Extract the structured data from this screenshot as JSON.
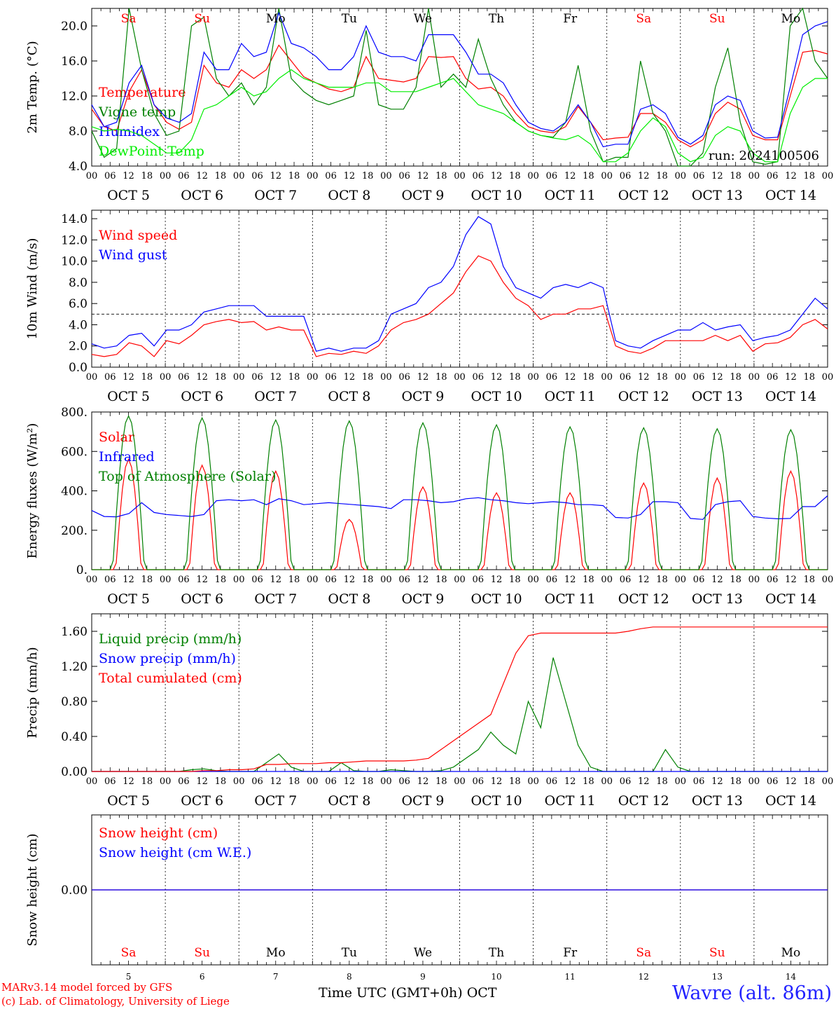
{
  "chart_data": [
    {
      "type": "line",
      "ylabel": "2m Temp. (°C)",
      "ylim": [
        4,
        22
      ],
      "yticks": [
        "4.0",
        "8.0",
        "12.0",
        "16.0",
        "20.0"
      ],
      "annotation": "run: 2024100506",
      "series": [
        {
          "name": "Temperature",
          "color": "#ff0000",
          "values": [
            10.5,
            8.5,
            8.0,
            12.5,
            15.0,
            11.0,
            9.0,
            8.2,
            9.0,
            15.5,
            13.5,
            13.0,
            15.0,
            14.0,
            15.0,
            17.8,
            16.0,
            14.2,
            13.5,
            12.8,
            12.5,
            13.0,
            16.5,
            14.0,
            13.8,
            13.6,
            14.0,
            16.5,
            16.4,
            16.5,
            14.0,
            12.8,
            13.0,
            12.0,
            10.0,
            8.5,
            8.0,
            7.8,
            8.5,
            10.8,
            9.0,
            7.0,
            7.2,
            7.3,
            10.0,
            10.0,
            9.0,
            7.0,
            6.2,
            7.0,
            10.0,
            11.3,
            10.5,
            7.5,
            7.0,
            7.0,
            12.0,
            17.0,
            17.2,
            16.8
          ]
        },
        {
          "name": "Vigne temp",
          "color": "#008000",
          "values": [
            8.0,
            5.0,
            6.0,
            22.0,
            15.0,
            10.0,
            7.5,
            8.0,
            20.0,
            21.0,
            14.0,
            12.0,
            13.5,
            11.0,
            13.0,
            22.0,
            14.0,
            12.5,
            11.5,
            11.0,
            11.5,
            12.0,
            19.5,
            11.0,
            10.5,
            10.5,
            13.0,
            22.0,
            13.0,
            14.5,
            13.0,
            18.5,
            14.0,
            11.0,
            9.0,
            8.0,
            7.5,
            7.3,
            9.0,
            15.5,
            8.0,
            4.5,
            5.0,
            5.0,
            16.0,
            10.0,
            8.0,
            4.0,
            4.0,
            5.5,
            13.0,
            17.5,
            9.0,
            4.5,
            4.2,
            4.5,
            20.0,
            22.0,
            16.0,
            14.0
          ]
        },
        {
          "name": "Humidex",
          "color": "#0000ff",
          "values": [
            11.0,
            8.5,
            9.0,
            13.5,
            15.5,
            11.0,
            9.5,
            9.0,
            10.0,
            17.0,
            15.0,
            15.0,
            18.0,
            16.5,
            17.0,
            21.5,
            18.0,
            17.5,
            16.5,
            15.0,
            15.0,
            16.5,
            20.0,
            17.0,
            16.5,
            16.5,
            16.0,
            19.0,
            19.0,
            19.0,
            17.0,
            14.5,
            14.5,
            13.5,
            11.0,
            9.0,
            8.3,
            8.0,
            9.0,
            11.0,
            9.0,
            6.2,
            6.5,
            6.5,
            10.5,
            11.0,
            10.0,
            7.3,
            6.5,
            7.5,
            11.0,
            12.0,
            11.5,
            8.0,
            7.2,
            7.3,
            13.0,
            19.0,
            20.0,
            20.5
          ]
        },
        {
          "name": "DewPoint Temp",
          "color": "#00ee00",
          "values": [
            8.5,
            8.0,
            8.2,
            8.0,
            7.5,
            6.5,
            5.5,
            5.5,
            7.0,
            10.5,
            11.0,
            12.0,
            13.0,
            12.0,
            12.5,
            14.0,
            15.0,
            14.0,
            13.5,
            13.0,
            13.0,
            13.0,
            13.5,
            13.5,
            12.5,
            12.5,
            12.5,
            13.0,
            13.5,
            14.0,
            12.5,
            11.0,
            10.5,
            10.0,
            9.0,
            8.0,
            7.5,
            7.2,
            7.0,
            7.5,
            6.5,
            4.5,
            4.5,
            5.5,
            8.0,
            9.5,
            8.5,
            5.5,
            4.5,
            5.0,
            7.5,
            8.5,
            8.0,
            5.5,
            4.5,
            4.5,
            10.0,
            13.0,
            14.0,
            14.0
          ]
        }
      ]
    },
    {
      "type": "line",
      "ylabel": "10m Wind (m/s)",
      "ylim": [
        0,
        14.8
      ],
      "yticks": [
        "0.0",
        "2.0",
        "4.0",
        "6.0",
        "8.0",
        "10.0",
        "12.0",
        "14.0"
      ],
      "reference_line": 5,
      "series": [
        {
          "name": "Wind speed",
          "color": "#ff0000",
          "values": [
            1.2,
            1.0,
            1.2,
            2.3,
            2.0,
            1.0,
            2.5,
            2.2,
            3.0,
            4.0,
            4.3,
            4.5,
            4.2,
            4.3,
            3.5,
            3.8,
            3.5,
            3.5,
            1.0,
            1.3,
            1.2,
            1.5,
            1.3,
            2.0,
            3.5,
            4.2,
            4.5,
            5.0,
            6.0,
            7.0,
            9.0,
            10.5,
            10.0,
            8.0,
            6.5,
            5.8,
            4.5,
            5.0,
            5.0,
            5.5,
            5.5,
            5.8,
            2.0,
            1.5,
            1.3,
            1.8,
            2.5,
            2.5,
            2.5,
            2.5,
            3.0,
            2.5,
            3.0,
            1.5,
            2.2,
            2.3,
            2.8,
            4.0,
            4.5,
            3.6
          ]
        },
        {
          "name": "Wind gust",
          "color": "#0000ff",
          "values": [
            2.2,
            1.8,
            2.0,
            3.0,
            3.2,
            2.0,
            3.5,
            3.5,
            4.0,
            5.2,
            5.5,
            5.8,
            5.8,
            5.8,
            4.8,
            4.8,
            4.8,
            4.8,
            1.5,
            1.8,
            1.5,
            1.8,
            1.8,
            2.5,
            5.0,
            5.5,
            6.0,
            7.5,
            8.0,
            9.5,
            12.5,
            14.2,
            13.5,
            9.5,
            7.5,
            7.0,
            6.5,
            7.5,
            7.8,
            7.5,
            8.0,
            7.5,
            2.5,
            2.0,
            1.8,
            2.5,
            3.0,
            3.5,
            3.5,
            4.2,
            3.5,
            3.8,
            4.0,
            2.5,
            2.8,
            3.0,
            3.5,
            5.0,
            6.5,
            5.5
          ]
        }
      ]
    },
    {
      "type": "line",
      "ylabel": "Energy fluxes (W/m²)",
      "ylim": [
        0,
        800
      ],
      "yticks": [
        "0.",
        "200.",
        "400.",
        "600.",
        "800."
      ],
      "series": [
        {
          "name": "Solar",
          "color": "#ff0000",
          "values": [
            0,
            0,
            0,
            0,
            0,
            0,
            0,
            0,
            0,
            0,
            0,
            0,
            0,
            0,
            0,
            0,
            0,
            0,
            0,
            0,
            0,
            0,
            0,
            0,
            0,
            0,
            0,
            0,
            0,
            0,
            0,
            0,
            0,
            0,
            0,
            0,
            0,
            0,
            0,
            0,
            0,
            0,
            0,
            0,
            0,
            0,
            0,
            0,
            0,
            0,
            0,
            0,
            0,
            0,
            0,
            0,
            0,
            0,
            0,
            0
          ]
        },
        {
          "name": "Infrared",
          "color": "#0000ff",
          "values": [
            300,
            270,
            268,
            285,
            340,
            290,
            280,
            275,
            270,
            280,
            350,
            355,
            350,
            355,
            330,
            360,
            350,
            330,
            335,
            340,
            335,
            330,
            325,
            320,
            310,
            355,
            355,
            350,
            340,
            345,
            360,
            365,
            355,
            350,
            340,
            335,
            340,
            345,
            340,
            330,
            330,
            325,
            265,
            262,
            280,
            345,
            345,
            340,
            260,
            255,
            330,
            345,
            350,
            270,
            262,
            258,
            260,
            320,
            320,
            375
          ]
        },
        {
          "name": "Top of Atmosphere (Solar)",
          "color": "#008000",
          "values": [
            0,
            0,
            0,
            0,
            0,
            0,
            0,
            0,
            0,
            0,
            0,
            0,
            0,
            0,
            0,
            0,
            0,
            0,
            0,
            0,
            0,
            0,
            0,
            0,
            0,
            0,
            0,
            0,
            0,
            0,
            0,
            0,
            0,
            0,
            0,
            0,
            0,
            0,
            0,
            0,
            0,
            0,
            0,
            0,
            0,
            0,
            0,
            0,
            0,
            0,
            0,
            0,
            0,
            0,
            0,
            0,
            0,
            0,
            0,
            0
          ]
        }
      ],
      "solar_daily": {
        "peak_hour": 12,
        "half_width_hours": 5.2,
        "toa_peaks": [
          780,
          770,
          760,
          755,
          745,
          735,
          725,
          720,
          715,
          710
        ],
        "solar_peaks": [
          560,
          530,
          500,
          255,
          420,
          390,
          390,
          440,
          465,
          500
        ]
      }
    },
    {
      "type": "line",
      "ylabel": "Precip (mm/h)",
      "ylim": [
        0,
        1.8
      ],
      "yticks": [
        "0.00",
        "0.40",
        "0.80",
        "1.20",
        "1.60"
      ],
      "series": [
        {
          "name": "Liquid precip (mm/h)",
          "color": "#008000",
          "values": [
            0,
            0,
            0,
            0,
            0,
            0,
            0,
            0,
            0.02,
            0.03,
            0.01,
            0,
            0,
            0,
            0.1,
            0.2,
            0.05,
            0,
            0,
            0,
            0.1,
            0.01,
            0,
            0,
            0.02,
            0.01,
            0,
            0,
            0.01,
            0.05,
            0.15,
            0.25,
            0.45,
            0.3,
            0.2,
            0.8,
            0.5,
            1.3,
            0.8,
            0.3,
            0.05,
            0,
            0,
            0,
            0,
            0,
            0.25,
            0.05,
            0,
            0,
            0,
            0,
            0,
            0,
            0,
            0,
            0,
            0,
            0,
            0
          ]
        },
        {
          "name": "Snow precip (mm/h)",
          "color": "#0000ff",
          "values": [
            0,
            0,
            0,
            0,
            0,
            0,
            0,
            0,
            0,
            0,
            0,
            0,
            0,
            0,
            0,
            0,
            0,
            0,
            0,
            0,
            0,
            0,
            0,
            0,
            0,
            0,
            0,
            0,
            0,
            0,
            0,
            0,
            0,
            0,
            0,
            0,
            0,
            0,
            0,
            0,
            0,
            0,
            0,
            0,
            0,
            0,
            0,
            0,
            0,
            0,
            0,
            0,
            0,
            0,
            0,
            0,
            0,
            0,
            0,
            0
          ]
        },
        {
          "name": "Total cumulated (cm)",
          "color": "#ff0000",
          "values": [
            0,
            0,
            0,
            0,
            0,
            0,
            0,
            0,
            0,
            0.01,
            0.01,
            0.02,
            0.02,
            0.03,
            0.08,
            0.08,
            0.09,
            0.09,
            0.09,
            0.1,
            0.1,
            0.11,
            0.12,
            0.12,
            0.12,
            0.12,
            0.13,
            0.15,
            0.25,
            0.35,
            0.45,
            0.55,
            0.65,
            1.0,
            1.35,
            1.55,
            1.58,
            1.58,
            1.58,
            1.58,
            1.58,
            1.58,
            1.58,
            1.6,
            1.63,
            1.65,
            1.65,
            1.65,
            1.65,
            1.65,
            1.65,
            1.65,
            1.65,
            1.65,
            1.65,
            1.65,
            1.65,
            1.65,
            1.65,
            1.65
          ]
        }
      ]
    },
    {
      "type": "line",
      "ylabel": "Snow height (cm)",
      "ylim": [
        -1,
        1
      ],
      "yticks": [
        "0.00"
      ],
      "series": [
        {
          "name": "Snow height (cm)",
          "color": "#ff0000",
          "values": [
            0,
            0
          ]
        },
        {
          "name": "Snow height (cm W.E.)",
          "color": "#0000ff",
          "values": [
            0,
            0
          ]
        }
      ]
    }
  ],
  "weekdays": [
    "Sa",
    "Su",
    "Mo",
    "Tu",
    "We",
    "Th",
    "Fr",
    "Sa",
    "Su",
    "Mo"
  ],
  "weekday_colors": [
    "#ff0000",
    "#ff0000",
    "#000000",
    "#000000",
    "#000000",
    "#000000",
    "#000000",
    "#ff0000",
    "#ff0000",
    "#000000"
  ],
  "hour_ticks": [
    "00",
    "06",
    "12",
    "18"
  ],
  "end_hour_tick": "00",
  "month_label": "OCT",
  "days": [
    "5",
    "6",
    "7",
    "8",
    "9",
    "10",
    "11",
    "12",
    "13",
    "14"
  ],
  "footer": {
    "credit_line1": "MARv3.14 model forced by GFS",
    "credit_line2": "(c) Lab. of Climatology, University of Liege",
    "time_axis": "Time UTC (GMT+0h) OCT",
    "station": "Wavre (alt. 86m)"
  }
}
